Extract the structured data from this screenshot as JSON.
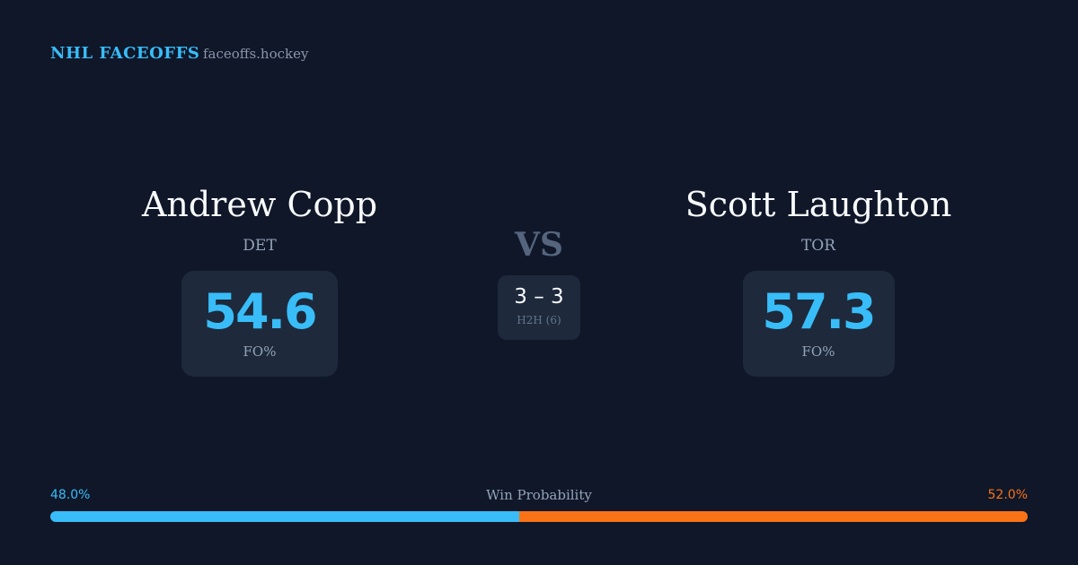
{
  "header": {
    "title": "NHL FACEOFFS",
    "site": "faceoffs.hockey"
  },
  "players": [
    {
      "name": "Andrew Copp",
      "team": "DET",
      "stat": "54.6",
      "stat_label": "FO%"
    },
    {
      "name": "Scott Laughton",
      "team": "TOR",
      "stat": "57.3",
      "stat_label": "FO%"
    }
  ],
  "versus": "VS",
  "head_to_head": {
    "score": "3 – 3",
    "label": "H2H (6)"
  },
  "win_probability": {
    "label": "Win Probability",
    "left": {
      "value": 48,
      "label": "48.0%",
      "color": "#38bdf8"
    },
    "right": {
      "value": 52,
      "label": "52.0%",
      "color": "#f97316"
    }
  }
}
